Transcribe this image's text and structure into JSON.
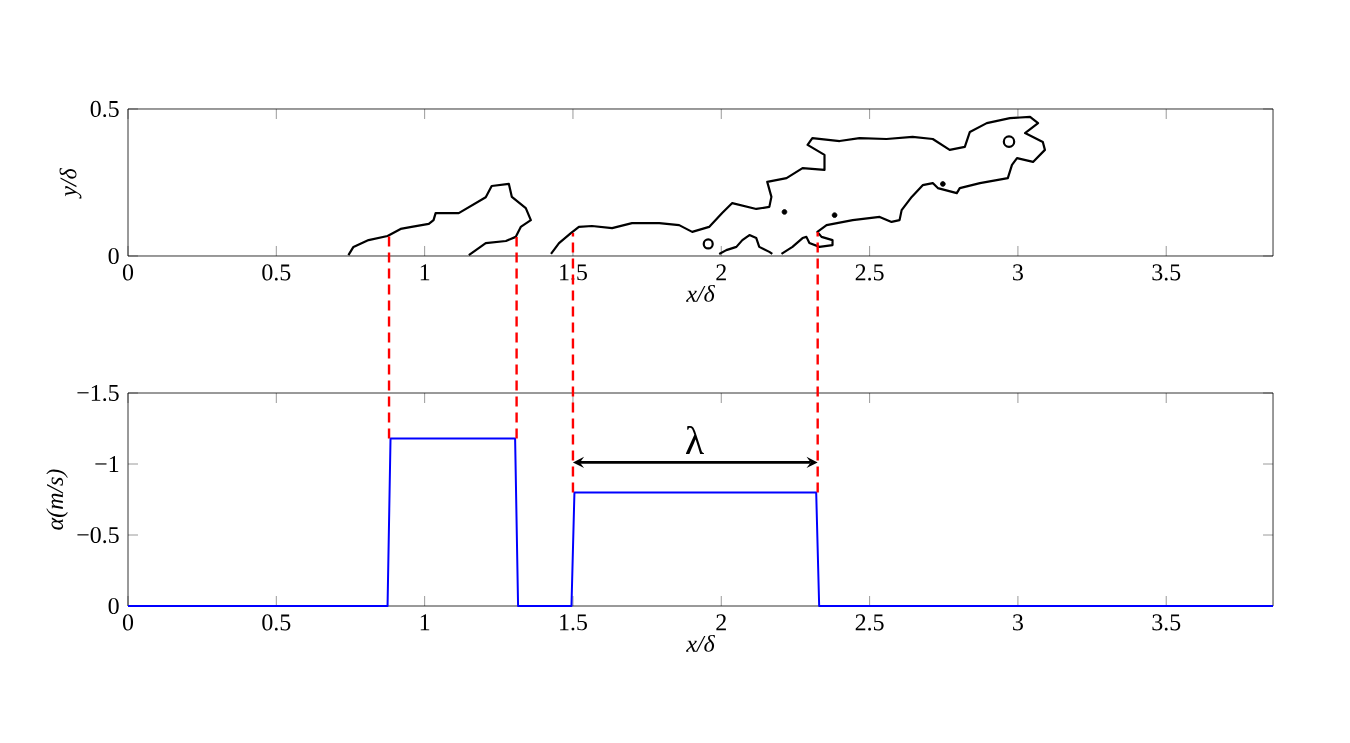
{
  "chart_data": [
    {
      "type": "line",
      "ylabel": "y/δ",
      "xlabel": "x/δ",
      "xlim": [
        0,
        3.86
      ],
      "ylim": [
        0,
        0.5
      ],
      "xticks": [
        0,
        0.5,
        1,
        1.5,
        2,
        2.5,
        3,
        3.5
      ],
      "yticks": [
        0,
        0.5
      ],
      "series": [
        {
          "color": "#000000",
          "x": [
            0.743,
            0.76,
            0.811,
            0.875,
            0.919,
            0.956,
            1.014,
            1.03,
            1.037,
            1.115,
            1.206,
            1.226,
            1.284,
            1.294,
            1.341,
            1.358,
            1.324,
            1.307,
            1.274,
            1.206,
            1.149
          ],
          "values": [
            0.003,
            0.031,
            0.054,
            0.068,
            0.092,
            0.099,
            0.109,
            0.122,
            0.146,
            0.146,
            0.2,
            0.238,
            0.245,
            0.201,
            0.163,
            0.122,
            0.099,
            0.065,
            0.051,
            0.044,
            0.003
          ]
        },
        {
          "color": "#000000",
          "x": [
            1.426,
            1.453,
            1.493,
            1.52,
            1.564,
            1.632,
            1.699,
            1.791,
            1.858,
            1.902,
            1.959,
            2.003,
            2.037,
            2.118,
            2.162,
            2.169,
            2.155,
            2.22,
            2.274,
            2.348,
            2.348,
            2.291,
            2.307,
            2.399,
            2.466,
            2.557,
            2.645,
            2.713,
            2.77,
            2.821,
            2.838,
            2.895,
            2.973,
            3.041,
            3.068,
            3.024,
            3.084,
            3.091,
            3.051,
            2.997,
            2.98,
            2.966,
            2.872,
            2.804,
            2.794,
            2.73,
            2.713,
            2.679,
            2.642,
            2.608,
            2.601,
            2.574,
            2.534,
            2.443,
            2.355,
            2.324,
            2.338,
            2.375,
            2.375,
            2.331,
            2.297,
            2.287,
            2.274,
            2.24,
            2.203
          ],
          "values": [
            0.007,
            0.044,
            0.078,
            0.099,
            0.102,
            0.095,
            0.112,
            0.112,
            0.105,
            0.082,
            0.099,
            0.146,
            0.18,
            0.16,
            0.167,
            0.201,
            0.252,
            0.265,
            0.299,
            0.293,
            0.344,
            0.378,
            0.401,
            0.391,
            0.401,
            0.398,
            0.405,
            0.398,
            0.361,
            0.371,
            0.422,
            0.452,
            0.469,
            0.473,
            0.452,
            0.418,
            0.388,
            0.361,
            0.32,
            0.333,
            0.31,
            0.265,
            0.248,
            0.231,
            0.214,
            0.231,
            0.248,
            0.241,
            0.201,
            0.156,
            0.122,
            0.116,
            0.133,
            0.122,
            0.105,
            0.082,
            0.065,
            0.054,
            0.037,
            0.031,
            0.044,
            0.065,
            0.061,
            0.031,
            0.007
          ]
        },
        {
          "color": "#000000",
          "x": [
            1.993,
            2.017,
            2.051,
            2.071,
            2.095,
            2.118,
            2.128,
            2.162,
            2.172
          ],
          "values": [
            0.007,
            0.02,
            0.031,
            0.054,
            0.071,
            0.061,
            0.031,
            0.014,
            0.007
          ]
        },
        {
          "type": "bubble",
          "color": "#000000",
          "x": [
            1.956,
            2.97
          ],
          "values": [
            0.041,
            0.389
          ],
          "sizes": [
            0.75,
            1
          ]
        },
        {
          "type": "scatter",
          "marker": "circle",
          "color": "#000000",
          "x": [
            2.213,
            2.382,
            2.747
          ],
          "values": [
            0.15,
            0.139,
            0.245
          ]
        }
      ]
    },
    {
      "type": "line",
      "ylabel": "α(m/s)",
      "xlabel": "x/δ",
      "xlim": [
        0,
        3.86
      ],
      "ylim": [
        0,
        -1.5
      ],
      "xticks": [
        0,
        0.5,
        1,
        1.5,
        2,
        2.5,
        3,
        3.5
      ],
      "yticks": [
        0,
        {
          "value": -0.5,
          "label": "−0.5"
        },
        {
          "value": -1,
          "label": "−1"
        },
        {
          "value": -1.5,
          "label": "−1.5"
        }
      ],
      "series": [
        {
          "color": "#0000ff",
          "x": [
            0,
            0.875,
            0.885,
            1.305,
            1.315,
            1.495,
            1.505,
            2.32,
            2.33,
            3.86
          ],
          "values": [
            0,
            0,
            -1.18,
            -1.18,
            0,
            0,
            -0.8,
            -0.8,
            0,
            0
          ]
        }
      ],
      "ref_lines": [
        {
          "axis": "x",
          "value": 0.88,
          "color": "#ff0000",
          "line_style": "dashed"
        },
        {
          "axis": "x",
          "value": 1.31,
          "color": "#ff0000",
          "line_style": "dashed"
        },
        {
          "axis": "x",
          "value": 1.5,
          "color": "#ff0000",
          "line_style": "dashed"
        },
        {
          "axis": "x",
          "value": 2.325,
          "color": "#ff0000",
          "line_style": "dashed"
        }
      ],
      "annotations": [
        {
          "text": "λ",
          "x": 1.91,
          "y": -0.8
        }
      ]
    }
  ]
}
